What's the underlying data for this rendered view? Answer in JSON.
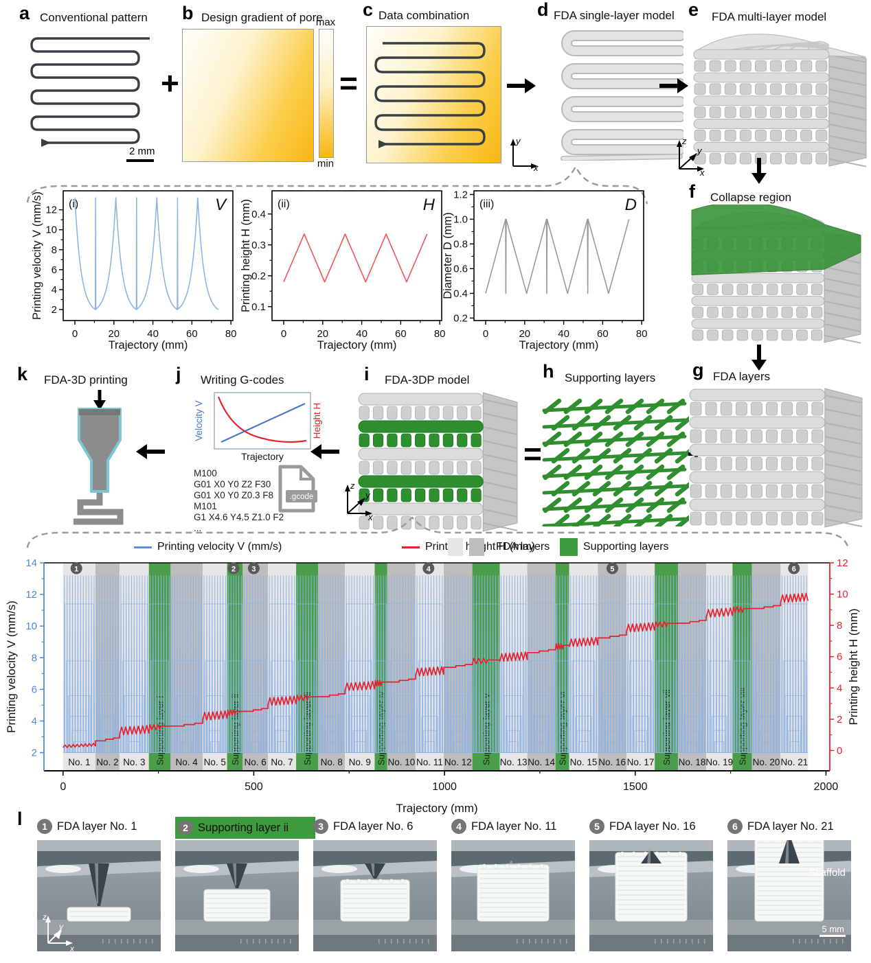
{
  "colors": {
    "accent_orange": "#F8B613",
    "green": "#3D9A3D",
    "blue_line": "#8FB3E3",
    "blue_axis": "#4D88D8",
    "red_line": "#E8202A",
    "gray_light_band": "#E6E6E6",
    "gray_dark_band": "#BDBDBD",
    "marker_circle": "#5A5A5A"
  },
  "panels": {
    "a": {
      "id": "a",
      "title": "Conventional pattern",
      "scale_bar": "2 mm"
    },
    "b": {
      "id": "b",
      "title": "Design gradient of pore",
      "colorbar": {
        "max": "max",
        "min": "min"
      }
    },
    "c": {
      "id": "c",
      "title": "Data combination"
    },
    "d": {
      "id": "d",
      "title": "FDA single-layer model",
      "axes": {
        "x": "x",
        "y": "y"
      }
    },
    "e": {
      "id": "e",
      "title": "FDA multi-layer model",
      "axes": {
        "x": "x",
        "y": "y",
        "z": "z"
      }
    },
    "f": {
      "id": "f",
      "title": "Collapse region"
    },
    "g": {
      "id": "g",
      "title": "FDA layers"
    },
    "h": {
      "id": "h",
      "title": "Supporting layers"
    },
    "i": {
      "id": "i",
      "title": "FDA-3DP model",
      "axes": {
        "x": "x",
        "y": "y",
        "z": "z"
      }
    },
    "j": {
      "id": "j",
      "title": "Writing G-codes",
      "mini_chart": {
        "ylabel_left": "Velocity V",
        "ylabel_right": "Height H",
        "xlabel": "Trajectory"
      },
      "gcode_lines": [
        "M100",
        "G01 X0 Y0 Z2 F30",
        "G01 X0 Y0 Z0.3 F8",
        "M101",
        "G1 X4.6 Y4.5 Z1.0 F2",
        "..."
      ],
      "file_badge": ".gcode"
    },
    "k": {
      "id": "k",
      "title": "FDA-3D printing"
    },
    "l": {
      "id": "l",
      "axes": {
        "x": "x",
        "y": "y",
        "z": "z"
      },
      "photos": [
        {
          "num": "1",
          "caption": "FDA layer No. 1",
          "highlight": false
        },
        {
          "num": "2",
          "caption": "Supporting layer ii",
          "highlight": true
        },
        {
          "num": "3",
          "caption": "FDA layer No. 6",
          "highlight": false
        },
        {
          "num": "4",
          "caption": "FDA layer No. 11",
          "highlight": false
        },
        {
          "num": "5",
          "caption": "FDA layer No. 16",
          "highlight": false
        },
        {
          "num": "6",
          "caption": "FDA layer No. 21",
          "highlight": false,
          "annotation": "Scaffold",
          "scale_bar": "5 mm"
        }
      ]
    }
  },
  "operators": {
    "plus_ab": "+",
    "equals_bc": "=",
    "equals_ih": "=",
    "plus_hg": "+"
  },
  "chart_data": [
    {
      "id": "panel_i_velocity",
      "type": "line",
      "tag": "(i)",
      "corner_label": "V",
      "xlabel": "Trajectory (mm)",
      "ylabel": "Printing velocity V (mm/s)",
      "xlim": [
        -6,
        81
      ],
      "ylim": [
        0.9,
        13.9
      ],
      "xticks": [
        0,
        20,
        40,
        60,
        80
      ],
      "yticks": [
        2,
        4,
        6,
        8,
        10,
        12
      ],
      "tick_decimals": 0,
      "line_color": "#8FB3E3",
      "v_max": 13.2,
      "v_min": 2,
      "peaks_x": [
        0,
        21,
        42,
        63
      ],
      "valleys_x": [
        10.5,
        31.5,
        52.5,
        73.5
      ],
      "spike_x": [
        10.5,
        31.5,
        52.5
      ],
      "curve": "exponential"
    },
    {
      "id": "panel_ii_height",
      "type": "line",
      "tag": "(ii)",
      "corner_label": "H",
      "xlabel": "Trajectory (mm)",
      "ylabel": "Printing height H (mm)",
      "xlim": [
        -6,
        81
      ],
      "ylim": [
        0.055,
        0.475
      ],
      "xticks": [
        0,
        20,
        40,
        60,
        80
      ],
      "yticks": [
        0.1,
        0.2,
        0.3,
        0.4
      ],
      "tick_decimals": 1,
      "line_color": "#F2545B",
      "h_min": 0.18,
      "h_max": 0.335,
      "valleys_x": [
        0,
        21,
        42,
        63
      ],
      "peaks_x": [
        10.5,
        31.5,
        52.5,
        73.5
      ],
      "curve": "triangle"
    },
    {
      "id": "panel_iii_diameter",
      "type": "line",
      "tag": "(iii)",
      "corner_label": "D",
      "xlabel": "Trajectory (mm)",
      "ylabel": "Diameter D (mm)",
      "xlim": [
        -6,
        81
      ],
      "ylim": [
        0.18,
        1.23
      ],
      "xticks": [
        0,
        20,
        40,
        60,
        80
      ],
      "yticks": [
        0.2,
        0.4,
        0.6,
        0.8,
        1.0,
        1.2
      ],
      "tick_decimals": 1,
      "line_color": "#9A9A9A",
      "d_min": 0.4,
      "d_max": 1.0,
      "valleys_x": [
        0,
        21,
        42,
        63
      ],
      "peaks_x": [
        10.5,
        31.5,
        52.5,
        73.5
      ],
      "notch_x": [
        10.5,
        31.5,
        52.5
      ],
      "curve": "triangle-notch"
    },
    {
      "id": "main_profile",
      "type": "line",
      "xlabel": "Trajectory (mm)",
      "ylabel_left": "Printing velocity V (mm/s)",
      "ylabel_right": "Printing height H (mm)",
      "xlim": [
        -50,
        2010
      ],
      "ylim_left": [
        0.85,
        14.0
      ],
      "ylim_right": [
        -1.3,
        12
      ],
      "xticks": [
        0,
        500,
        1000,
        1500,
        2000
      ],
      "yticks_left": [
        2,
        4,
        6,
        8,
        10,
        12,
        14
      ],
      "yticks_right": [
        0,
        2,
        4,
        6,
        8,
        10,
        12
      ],
      "legend": [
        {
          "label": "Printing velocity V (mm/s)",
          "type": "line",
          "color": "#5B8DD9"
        },
        {
          "label": "Printing height H (mm)",
          "type": "line",
          "color": "#E8202A"
        },
        {
          "label": "FDA layers",
          "type": "swatches",
          "colors": [
            "#E6E6E6",
            "#BDBDBD"
          ]
        },
        {
          "label": "Supporting layers",
          "type": "swatch",
          "color": "#3D9A3D"
        }
      ],
      "velocity": {
        "min": 2,
        "max": 13.2,
        "spike_spacing_mm": 7.3,
        "step_levels": [
          11.4,
          7.8,
          5.6,
          4.3,
          3.4,
          2.7
        ]
      },
      "height": {
        "start": 0.25,
        "per_layer": 0.47,
        "zigzag_amp": 0.3,
        "end": 10.0
      },
      "bands": [
        {
          "label": "No. 1",
          "kind": "fda-light",
          "x0": 0,
          "x1": 85
        },
        {
          "label": "No. 2",
          "kind": "fda-dark",
          "x0": 85,
          "x1": 148
        },
        {
          "label": "No. 3",
          "kind": "fda-light",
          "x0": 148,
          "x1": 225
        },
        {
          "label": "Supporting layer i",
          "kind": "support",
          "x0": 225,
          "x1": 282
        },
        {
          "label": "No. 4",
          "kind": "fda-dark",
          "x0": 282,
          "x1": 366
        },
        {
          "label": "No. 5",
          "kind": "fda-light",
          "x0": 366,
          "x1": 430
        },
        {
          "label": "Supporting layer ii",
          "kind": "support",
          "x0": 430,
          "x1": 471
        },
        {
          "label": "No. 6",
          "kind": "fda-dark",
          "x0": 471,
          "x1": 537
        },
        {
          "label": "No. 7",
          "kind": "fda-light",
          "x0": 537,
          "x1": 611
        },
        {
          "label": "Supporting layer iii",
          "kind": "support",
          "x0": 611,
          "x1": 669
        },
        {
          "label": "No. 8",
          "kind": "fda-dark",
          "x0": 669,
          "x1": 739
        },
        {
          "label": "No. 9",
          "kind": "fda-light",
          "x0": 739,
          "x1": 817
        },
        {
          "label": "Supporting layer iv",
          "kind": "support",
          "x0": 817,
          "x1": 850
        },
        {
          "label": "No. 10",
          "kind": "fda-dark",
          "x0": 850,
          "x1": 924
        },
        {
          "label": "No. 11",
          "kind": "fda-light",
          "x0": 924,
          "x1": 998
        },
        {
          "label": "No. 12",
          "kind": "fda-dark",
          "x0": 998,
          "x1": 1073
        },
        {
          "label": "Supporting layer v",
          "kind": "support",
          "x0": 1073,
          "x1": 1145
        },
        {
          "label": "No. 13",
          "kind": "fda-light",
          "x0": 1145,
          "x1": 1217
        },
        {
          "label": "No. 14",
          "kind": "fda-dark",
          "x0": 1217,
          "x1": 1291
        },
        {
          "label": "Supporting layer vi",
          "kind": "support",
          "x0": 1291,
          "x1": 1327
        },
        {
          "label": "No. 15",
          "kind": "fda-light",
          "x0": 1327,
          "x1": 1402
        },
        {
          "label": "No. 16",
          "kind": "fda-dark",
          "x0": 1402,
          "x1": 1477
        },
        {
          "label": "No. 17",
          "kind": "fda-light",
          "x0": 1477,
          "x1": 1551
        },
        {
          "label": "Supporting layer vii",
          "kind": "support",
          "x0": 1551,
          "x1": 1612
        },
        {
          "label": "No. 18",
          "kind": "fda-dark",
          "x0": 1612,
          "x1": 1686
        },
        {
          "label": "No. 19",
          "kind": "fda-light",
          "x0": 1686,
          "x1": 1755
        },
        {
          "label": "Supporting layer viii",
          "kind": "support",
          "x0": 1755,
          "x1": 1806
        },
        {
          "label": "No. 20",
          "kind": "fda-dark",
          "x0": 1806,
          "x1": 1881
        },
        {
          "label": "No. 21",
          "kind": "fda-light",
          "x0": 1881,
          "x1": 1953
        }
      ],
      "markers": [
        {
          "num": "1",
          "x": 35
        },
        {
          "num": "2",
          "x": 447
        },
        {
          "num": "3",
          "x": 500
        },
        {
          "num": "4",
          "x": 958
        },
        {
          "num": "5",
          "x": 1440
        },
        {
          "num": "6",
          "x": 1916
        }
      ]
    }
  ]
}
